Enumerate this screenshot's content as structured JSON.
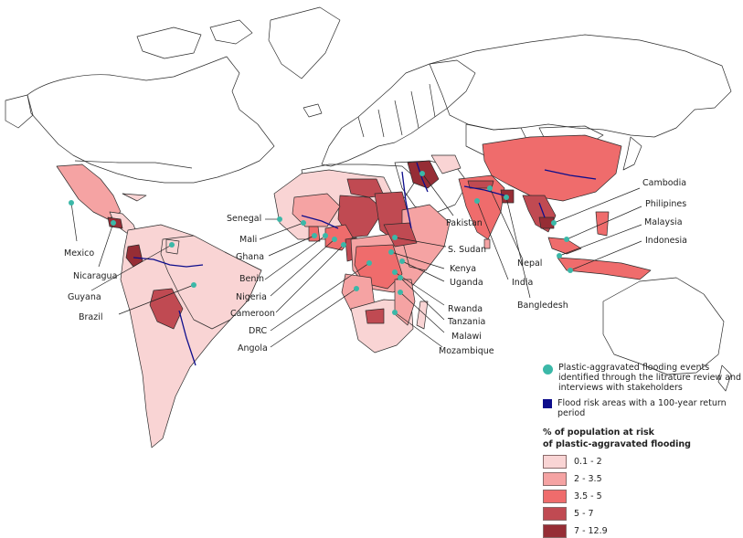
{
  "colors": {
    "bins": [
      "#f9d4d4",
      "#f5a3a3",
      "#ef6c6c",
      "#c04a52",
      "#962d35"
    ],
    "dot": "#3bb8a8",
    "flood": "#0d0d8c",
    "outline": "#2b2b2b"
  },
  "labels": {
    "mexico": "Mexico",
    "nicaragua": "Nicaragua",
    "guyana": "Guyana",
    "brazil": "Brazil",
    "senegal": "Senegal",
    "mali": "Mali",
    "ghana": "Ghana",
    "benin": "Benin",
    "nigeria": "Nigeria",
    "cameroon": "Cameroon",
    "drc": "DRC",
    "angola": "Angola",
    "pakistan": "Pakistan",
    "s_sudan": "S. Sudan",
    "kenya": "Kenya",
    "uganda": "Uganda",
    "rwanda": "Rwanda",
    "tanzania": "Tanzania",
    "malawi": "Malawi",
    "mozambique": "Mozambique",
    "india": "India",
    "nepal": "Nepal",
    "bangladesh": "Bangledesh",
    "cambodia": "Cambodia",
    "philippines": "Philipines",
    "malaysia": "Malaysia",
    "indonesia": "Indonesia"
  },
  "legend": {
    "dot_text": "Plastic-aggravated flooding events identified through the litrature review and interviews with stakeholders",
    "flood_text": "Flood risk areas with a 100-year return period",
    "title_line1": "% of population at risk",
    "title_line2": "of plastic-aggravated flooding",
    "bins": [
      "0.1 - 2",
      "2 - 3.5",
      "3.5 - 5",
      "5 - 7",
      "7 - 12.9"
    ]
  }
}
